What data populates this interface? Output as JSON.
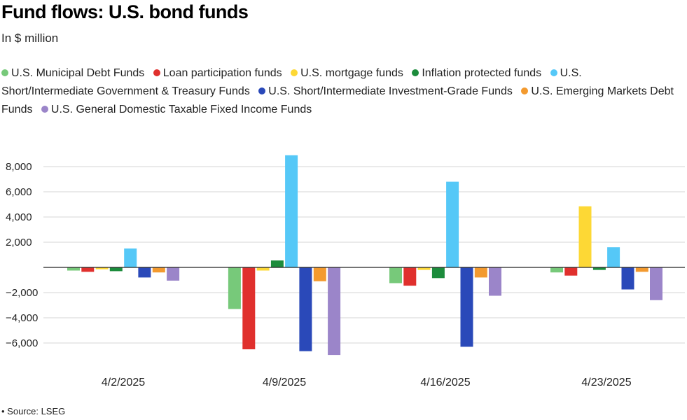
{
  "chart_data": {
    "type": "bar",
    "title": "Fund flows: U.S. bond funds",
    "subtitle": "In $ million",
    "categories": [
      "4/2/2025",
      "4/9/2025",
      "4/16/2025",
      "4/23/2025"
    ],
    "series": [
      {
        "name": "U.S. Municipal Debt Funds",
        "color": "#77c97a",
        "values": [
          -250,
          -3300,
          -1250,
          -400
        ]
      },
      {
        "name": "Loan participation funds",
        "color": "#e0302d",
        "values": [
          -350,
          -6500,
          -1450,
          -650
        ]
      },
      {
        "name": "U.S. mortgage funds",
        "color": "#fdd835",
        "values": [
          -150,
          -250,
          -200,
          4850
        ]
      },
      {
        "name": "Inflation protected funds",
        "color": "#1c8c3c",
        "values": [
          -300,
          550,
          -850,
          -200
        ]
      },
      {
        "name": "U.S. Short/Intermediate Government & Treasury Funds",
        "color": "#55c8f7",
        "values": [
          1500,
          8900,
          6800,
          1600
        ]
      },
      {
        "name": "U.S. Short/Intermediate Investment-Grade Funds",
        "color": "#2a49b9",
        "values": [
          -800,
          -6650,
          -6300,
          -1750
        ]
      },
      {
        "name": "U.S. Emerging Markets Debt Funds",
        "color": "#f39a2f",
        "values": [
          -400,
          -1100,
          -800,
          -350
        ]
      },
      {
        "name": "U.S. General Domestic Taxable Fixed Income Funds",
        "color": "#9b85c9",
        "values": [
          -1050,
          -6950,
          -2250,
          -2600
        ]
      }
    ],
    "yticks": [
      8000,
      6000,
      4000,
      2000,
      -2000,
      -4000,
      -6000
    ],
    "ytick_labels": [
      "8,000",
      "6,000",
      "4,000",
      "2,000",
      "−2,000",
      "−4,000",
      "−6,000"
    ],
    "ylim": [
      -7000,
      9000
    ],
    "grid": true,
    "legend_position": "top"
  },
  "source": "• Source: LSEG"
}
